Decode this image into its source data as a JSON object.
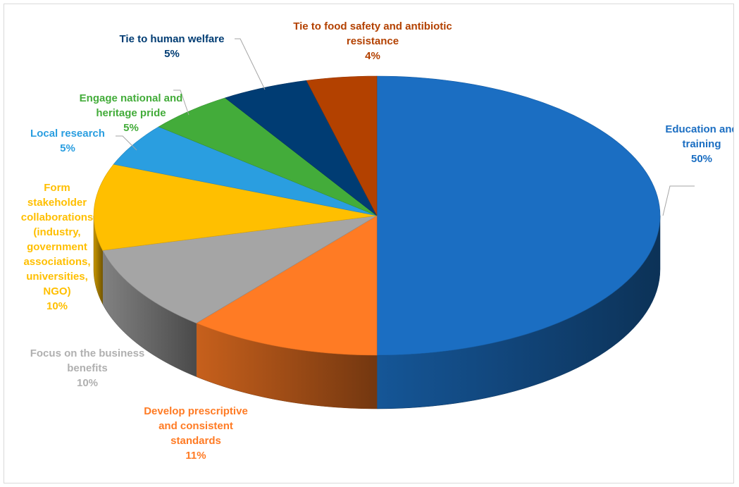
{
  "chart_data": {
    "type": "pie",
    "style": "3d",
    "title": "",
    "legend": "none",
    "slices": [
      {
        "label_lines": [
          "Education and",
          "training"
        ],
        "percent_label": "50%",
        "value": 50,
        "color": "#1b6ec2"
      },
      {
        "label_lines": [
          "Develop prescriptive",
          "and consistent",
          "standards"
        ],
        "percent_label": "11%",
        "value": 11,
        "color": "#ff7b24"
      },
      {
        "label_lines": [
          "Focus on the business",
          "benefits"
        ],
        "percent_label": "10%",
        "value": 10,
        "color": "#a5a5a5"
      },
      {
        "label_lines": [
          "Form",
          "stakeholder",
          "collaborations",
          "(industry,",
          "government",
          "associations,",
          "universities,",
          "NGO)"
        ],
        "percent_label": "10%",
        "value": 10,
        "color": "#ffbf00"
      },
      {
        "label_lines": [
          "Local research"
        ],
        "percent_label": "5%",
        "value": 5,
        "color": "#2a9ee0"
      },
      {
        "label_lines": [
          "Engage national and",
          "heritage pride"
        ],
        "percent_label": "5%",
        "value": 5,
        "color": "#43ac3a"
      },
      {
        "label_lines": [
          "Tie to human welfare"
        ],
        "percent_label": "5%",
        "value": 5,
        "color": "#003c73"
      },
      {
        "label_lines": [
          "Tie to food safety and antibiotic",
          "resistance"
        ],
        "percent_label": "4%",
        "value": 4,
        "color": "#b34100"
      }
    ],
    "label_colors": [
      "#1b6ec2",
      "#ff7b24",
      "#b0b0b0",
      "#ffbf00",
      "#2a9ee0",
      "#43ac3a",
      "#003c73",
      "#b34100"
    ]
  }
}
